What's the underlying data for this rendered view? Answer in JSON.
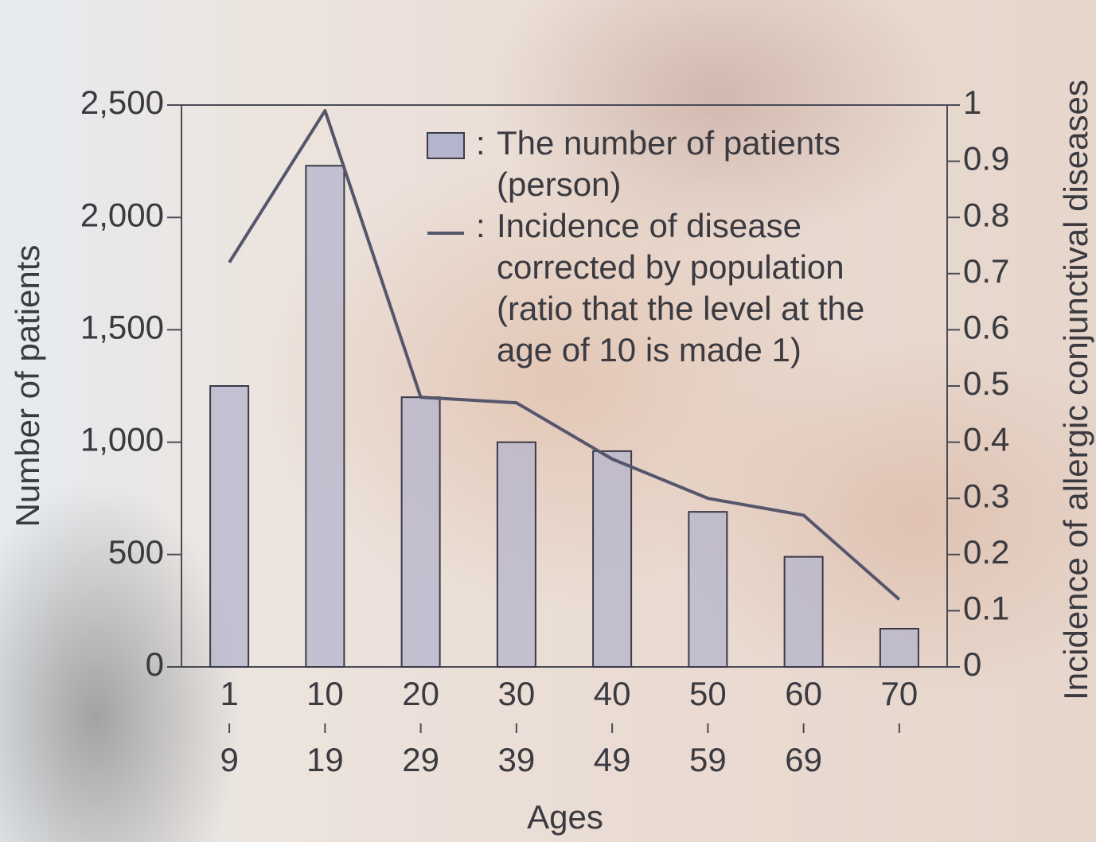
{
  "chart_data": {
    "type": "bar",
    "x_label": "Ages",
    "y_label": "Number of patients",
    "y2_label": "Incidence of allergic conjunctival diseases",
    "categories": [
      [
        "1",
        "9"
      ],
      [
        "10",
        "19"
      ],
      [
        "20",
        "29"
      ],
      [
        "30",
        "39"
      ],
      [
        "40",
        "49"
      ],
      [
        "50",
        "59"
      ],
      [
        "60",
        "69"
      ],
      [
        "70"
      ]
    ],
    "legend_prefix": ":",
    "series": [
      {
        "name": [
          "The number of patients",
          "(person)"
        ],
        "type": "bar",
        "color": "#b4b4cc",
        "values": [
          1250,
          2230,
          1200,
          1000,
          960,
          690,
          490,
          170
        ]
      },
      {
        "name": [
          "Incidence of disease",
          "corrected by population",
          "(ratio that the level at the",
          "age of 10 is made 1)"
        ],
        "type": "line",
        "axis": "y2",
        "color": "#55556c",
        "values": [
          0.72,
          0.99,
          0.48,
          0.47,
          0.37,
          0.3,
          0.27,
          0.12
        ]
      }
    ],
    "ylim": [
      0,
      2500
    ],
    "yticks": [
      0,
      500,
      {
        "value": 1000,
        "label": "1,000"
      },
      {
        "value": 1500,
        "label": "1,500"
      },
      {
        "value": 2000,
        "label": "2,000"
      },
      {
        "value": 2500,
        "label": "2,500"
      }
    ],
    "y2lim": [
      0,
      1
    ],
    "y2ticks": [
      0,
      0.1,
      0.2,
      0.3,
      0.4,
      0.5,
      0.6,
      0.7,
      0.8,
      0.9,
      1
    ]
  }
}
